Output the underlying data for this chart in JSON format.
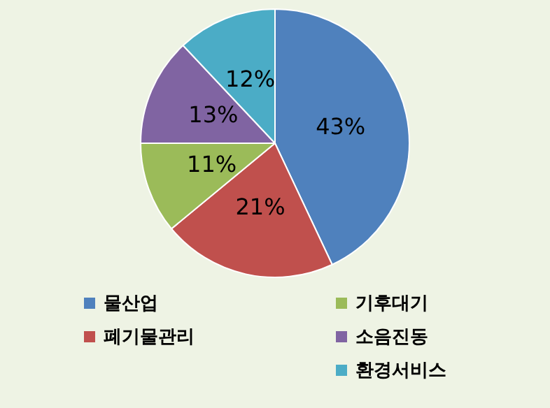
{
  "chart_data": {
    "type": "pie",
    "categories": [
      "물산업",
      "폐기물관리",
      "기후대기",
      "소음진동",
      "환경서비스"
    ],
    "values": [
      43,
      21,
      11,
      13,
      12
    ],
    "colors": [
      "#4f81bd",
      "#c0504d",
      "#9bbb59",
      "#8064a2",
      "#4bacc6"
    ],
    "value_labels": [
      "43%",
      "21%",
      "11%",
      "13%",
      "12%"
    ],
    "legend": "bottom"
  }
}
